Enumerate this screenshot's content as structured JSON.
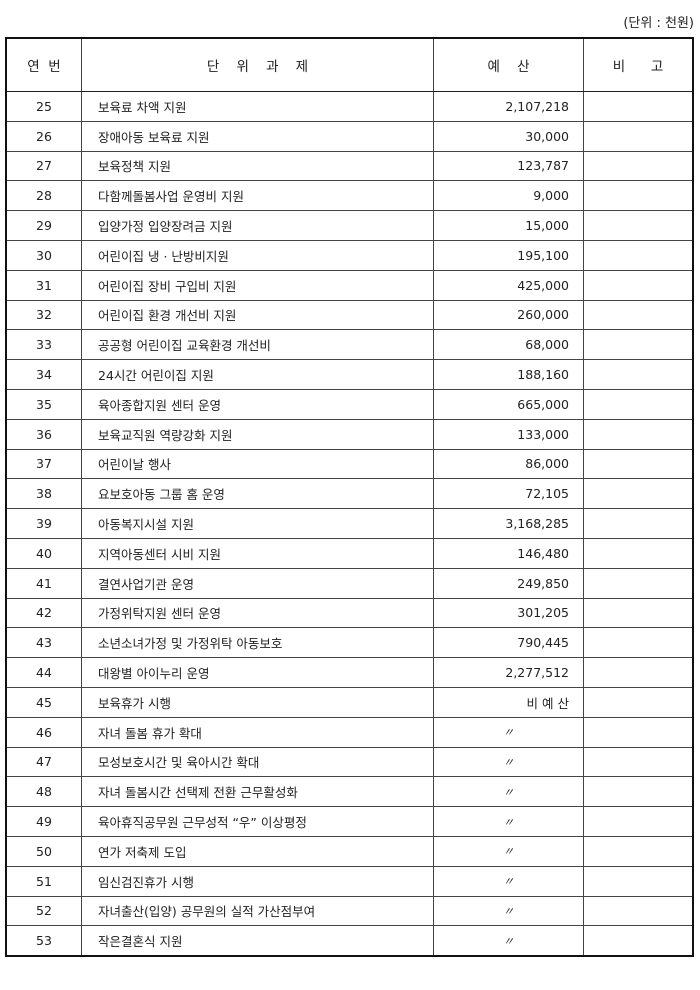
{
  "unit_note": "(단위 : 천원)",
  "headers": [
    "연  번",
    "단    위    과    제",
    "예    산",
    "비      고"
  ],
  "rows": [
    {
      "no": "25",
      "task": "보육료 차액 지원",
      "budget": "2,107,218",
      "note": ""
    },
    {
      "no": "26",
      "task": "장애아동 보육료 지원",
      "budget": "30,000",
      "note": ""
    },
    {
      "no": "27",
      "task": "보육정책 지원",
      "budget": "123,787",
      "note": ""
    },
    {
      "no": "28",
      "task": "다함께돌봄사업 운영비 지원",
      "budget": "9,000",
      "note": ""
    },
    {
      "no": "29",
      "task": "입양가정 입양장려금 지원",
      "budget": "15,000",
      "note": ""
    },
    {
      "no": "30",
      "task": "어린이집 냉 · 난방비지원",
      "budget": "195,100",
      "note": ""
    },
    {
      "no": "31",
      "task": "어린이집 장비 구입비 지원",
      "budget": "425,000",
      "note": ""
    },
    {
      "no": "32",
      "task": "어린이집 환경 개선비 지원",
      "budget": "260,000",
      "note": ""
    },
    {
      "no": "33",
      "task": "공공형 어린이집 교육환경 개선비",
      "budget": "68,000",
      "note": ""
    },
    {
      "no": "34",
      "task": "24시간 어린이집 지원",
      "budget": "188,160",
      "note": ""
    },
    {
      "no": "35",
      "task": "육아종합지원 센터 운영",
      "budget": "665,000",
      "note": ""
    },
    {
      "no": "36",
      "task": "보육교직원 역량강화 지원",
      "budget": "133,000",
      "note": ""
    },
    {
      "no": "37",
      "task": "어린이날 행사",
      "budget": "86,000",
      "note": ""
    },
    {
      "no": "38",
      "task": "요보호아동 그룹 홈 운영",
      "budget": "72,105",
      "note": ""
    },
    {
      "no": "39",
      "task": "아동복지시설 지원",
      "budget": "3,168,285",
      "note": ""
    },
    {
      "no": "40",
      "task": "지역아동센터 시비 지원",
      "budget": "146,480",
      "note": ""
    },
    {
      "no": "41",
      "task": "결연사업기관 운영",
      "budget": "249,850",
      "note": ""
    },
    {
      "no": "42",
      "task": "가정위탁지원 센터 운영",
      "budget": "301,205",
      "note": ""
    },
    {
      "no": "43",
      "task": "소년소녀가정 및 가정위탁 아동보호",
      "budget": "790,445",
      "note": ""
    },
    {
      "no": "44",
      "task": "대왕별 아이누리 운영",
      "budget": "2,277,512",
      "note": ""
    },
    {
      "no": "45",
      "task": "보육휴가 시행",
      "budget": "비 예 산",
      "note": ""
    },
    {
      "no": "46",
      "task": "자녀 돌봄 휴가 확대",
      "budget": "〃",
      "note": ""
    },
    {
      "no": "47",
      "task": "모성보호시간 및 육아시간 확대",
      "budget": "〃",
      "note": ""
    },
    {
      "no": "48",
      "task": "자녀 돌봄시간 선택제 전환 근무활성화",
      "budget": "〃",
      "note": ""
    },
    {
      "no": "49",
      "task": "육아휴직공무원 근무성적 “우” 이상평정",
      "budget": "〃",
      "note": ""
    },
    {
      "no": "50",
      "task": "연가 저축제 도입",
      "budget": "〃",
      "note": ""
    },
    {
      "no": "51",
      "task": "임신검진휴가 시행",
      "budget": "〃",
      "note": ""
    },
    {
      "no": "52",
      "task": "자녀출산(입양) 공무원의 실적 가산점부여",
      "budget": "〃",
      "note": ""
    },
    {
      "no": "53",
      "task": "작은결혼식 지원",
      "budget": "〃",
      "note": ""
    }
  ]
}
